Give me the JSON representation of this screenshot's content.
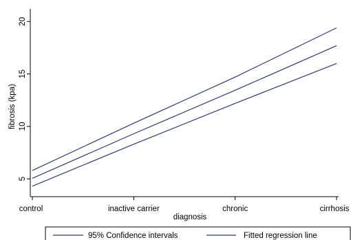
{
  "chart_data": {
    "type": "line",
    "xlabel": "diagnosis",
    "ylabel": "fibrosis (kpa)",
    "categories": [
      "control",
      "inactive carrier",
      "chronic",
      "cirrhosis"
    ],
    "x": [
      0,
      1,
      2,
      3
    ],
    "yticks": [
      5,
      10,
      15,
      20
    ],
    "ylim": [
      3.3,
      21.2
    ],
    "grid": false,
    "legend_position": "bottom",
    "series": [
      {
        "name": "95% Confidence intervals",
        "role": "upper",
        "color": "#2f3b6b",
        "values": [
          5.8,
          10.3,
          14.7,
          19.4
        ]
      },
      {
        "name": "Fitted regression line",
        "role": "fit",
        "color": "#2f3b6b",
        "values": [
          5.05,
          9.3,
          13.45,
          17.7
        ]
      },
      {
        "name": "95% Confidence intervals",
        "role": "lower",
        "color": "#2f3b6b",
        "values": [
          4.3,
          8.3,
          12.2,
          16.0
        ]
      }
    ],
    "legend": [
      {
        "label": "95% Confidence intervals",
        "color": "#2f3b6b"
      },
      {
        "label": "Fitted regression line",
        "color": "#2f3b6b"
      }
    ]
  }
}
